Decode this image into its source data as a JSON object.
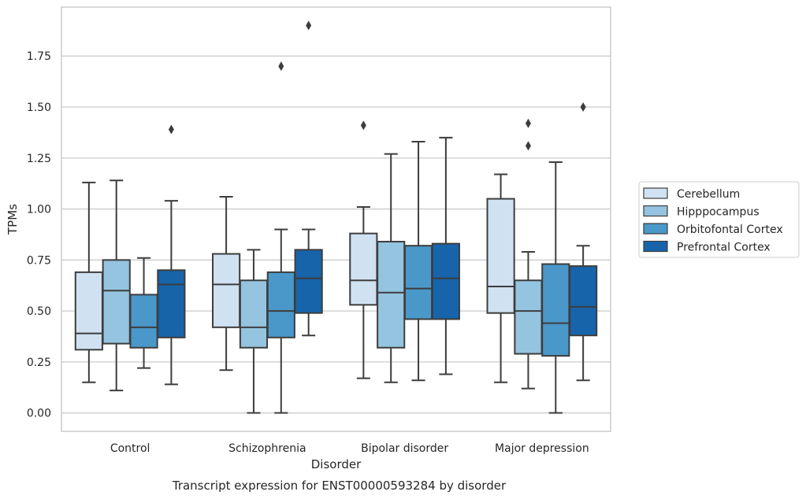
{
  "chart_data": {
    "type": "box",
    "title": "Transcript expression for ENST00000593284 by disorder",
    "xlabel": "Disorder",
    "ylabel": "TPMs",
    "ylim": [
      -0.09,
      1.99
    ],
    "yticks": [
      "0.00",
      "0.25",
      "0.50",
      "0.75",
      "1.00",
      "1.25",
      "1.50",
      "1.75"
    ],
    "grid": "horizontal",
    "legend_position": "right",
    "categories": [
      "Control",
      "Schizophrenia",
      "Bipolar disorder",
      "Major depression"
    ],
    "series": [
      {
        "name": "Cerebellum",
        "color": "#d0e1f2",
        "boxes": [
          {
            "whislo": 0.15,
            "q1": 0.31,
            "med": 0.39,
            "q3": 0.69,
            "whishi": 1.13,
            "fliers": []
          },
          {
            "whislo": 0.21,
            "q1": 0.42,
            "med": 0.63,
            "q3": 0.78,
            "whishi": 1.06,
            "fliers": []
          },
          {
            "whislo": 0.17,
            "q1": 0.53,
            "med": 0.65,
            "q3": 0.88,
            "whishi": 1.01,
            "fliers": [
              1.41
            ]
          },
          {
            "whislo": 0.15,
            "q1": 0.49,
            "med": 0.62,
            "q3": 1.05,
            "whishi": 1.17,
            "fliers": []
          }
        ]
      },
      {
        "name": "Hipppocampus",
        "color": "#94c4df",
        "boxes": [
          {
            "whislo": 0.11,
            "q1": 0.34,
            "med": 0.6,
            "q3": 0.75,
            "whishi": 1.14,
            "fliers": []
          },
          {
            "whislo": 0.0,
            "q1": 0.32,
            "med": 0.42,
            "q3": 0.65,
            "whishi": 0.8,
            "fliers": []
          },
          {
            "whislo": 0.15,
            "q1": 0.32,
            "med": 0.59,
            "q3": 0.84,
            "whishi": 1.27,
            "fliers": []
          },
          {
            "whislo": 0.12,
            "q1": 0.29,
            "med": 0.5,
            "q3": 0.65,
            "whishi": 0.79,
            "fliers": [
              1.31,
              1.42
            ]
          }
        ]
      },
      {
        "name": "Orbitofontal Cortex",
        "color": "#4a98c9",
        "boxes": [
          {
            "whislo": 0.22,
            "q1": 0.32,
            "med": 0.42,
            "q3": 0.58,
            "whishi": 0.76,
            "fliers": []
          },
          {
            "whislo": 0.0,
            "q1": 0.37,
            "med": 0.5,
            "q3": 0.69,
            "whishi": 0.9,
            "fliers": [
              1.7
            ]
          },
          {
            "whislo": 0.16,
            "q1": 0.46,
            "med": 0.61,
            "q3": 0.82,
            "whishi": 1.33,
            "fliers": []
          },
          {
            "whislo": 0.0,
            "q1": 0.28,
            "med": 0.44,
            "q3": 0.73,
            "whishi": 1.23,
            "fliers": []
          }
        ]
      },
      {
        "name": "Prefrontal Cortex",
        "color": "#1764ab",
        "boxes": [
          {
            "whislo": 0.14,
            "q1": 0.37,
            "med": 0.63,
            "q3": 0.7,
            "whishi": 1.04,
            "fliers": [
              1.39
            ]
          },
          {
            "whislo": 0.38,
            "q1": 0.49,
            "med": 0.66,
            "q3": 0.8,
            "whishi": 0.9,
            "fliers": [
              1.9
            ]
          },
          {
            "whislo": 0.19,
            "q1": 0.46,
            "med": 0.66,
            "q3": 0.83,
            "whishi": 1.35,
            "fliers": []
          },
          {
            "whislo": 0.16,
            "q1": 0.38,
            "med": 0.52,
            "q3": 0.72,
            "whishi": 0.82,
            "fliers": [
              1.5
            ]
          }
        ]
      }
    ]
  }
}
